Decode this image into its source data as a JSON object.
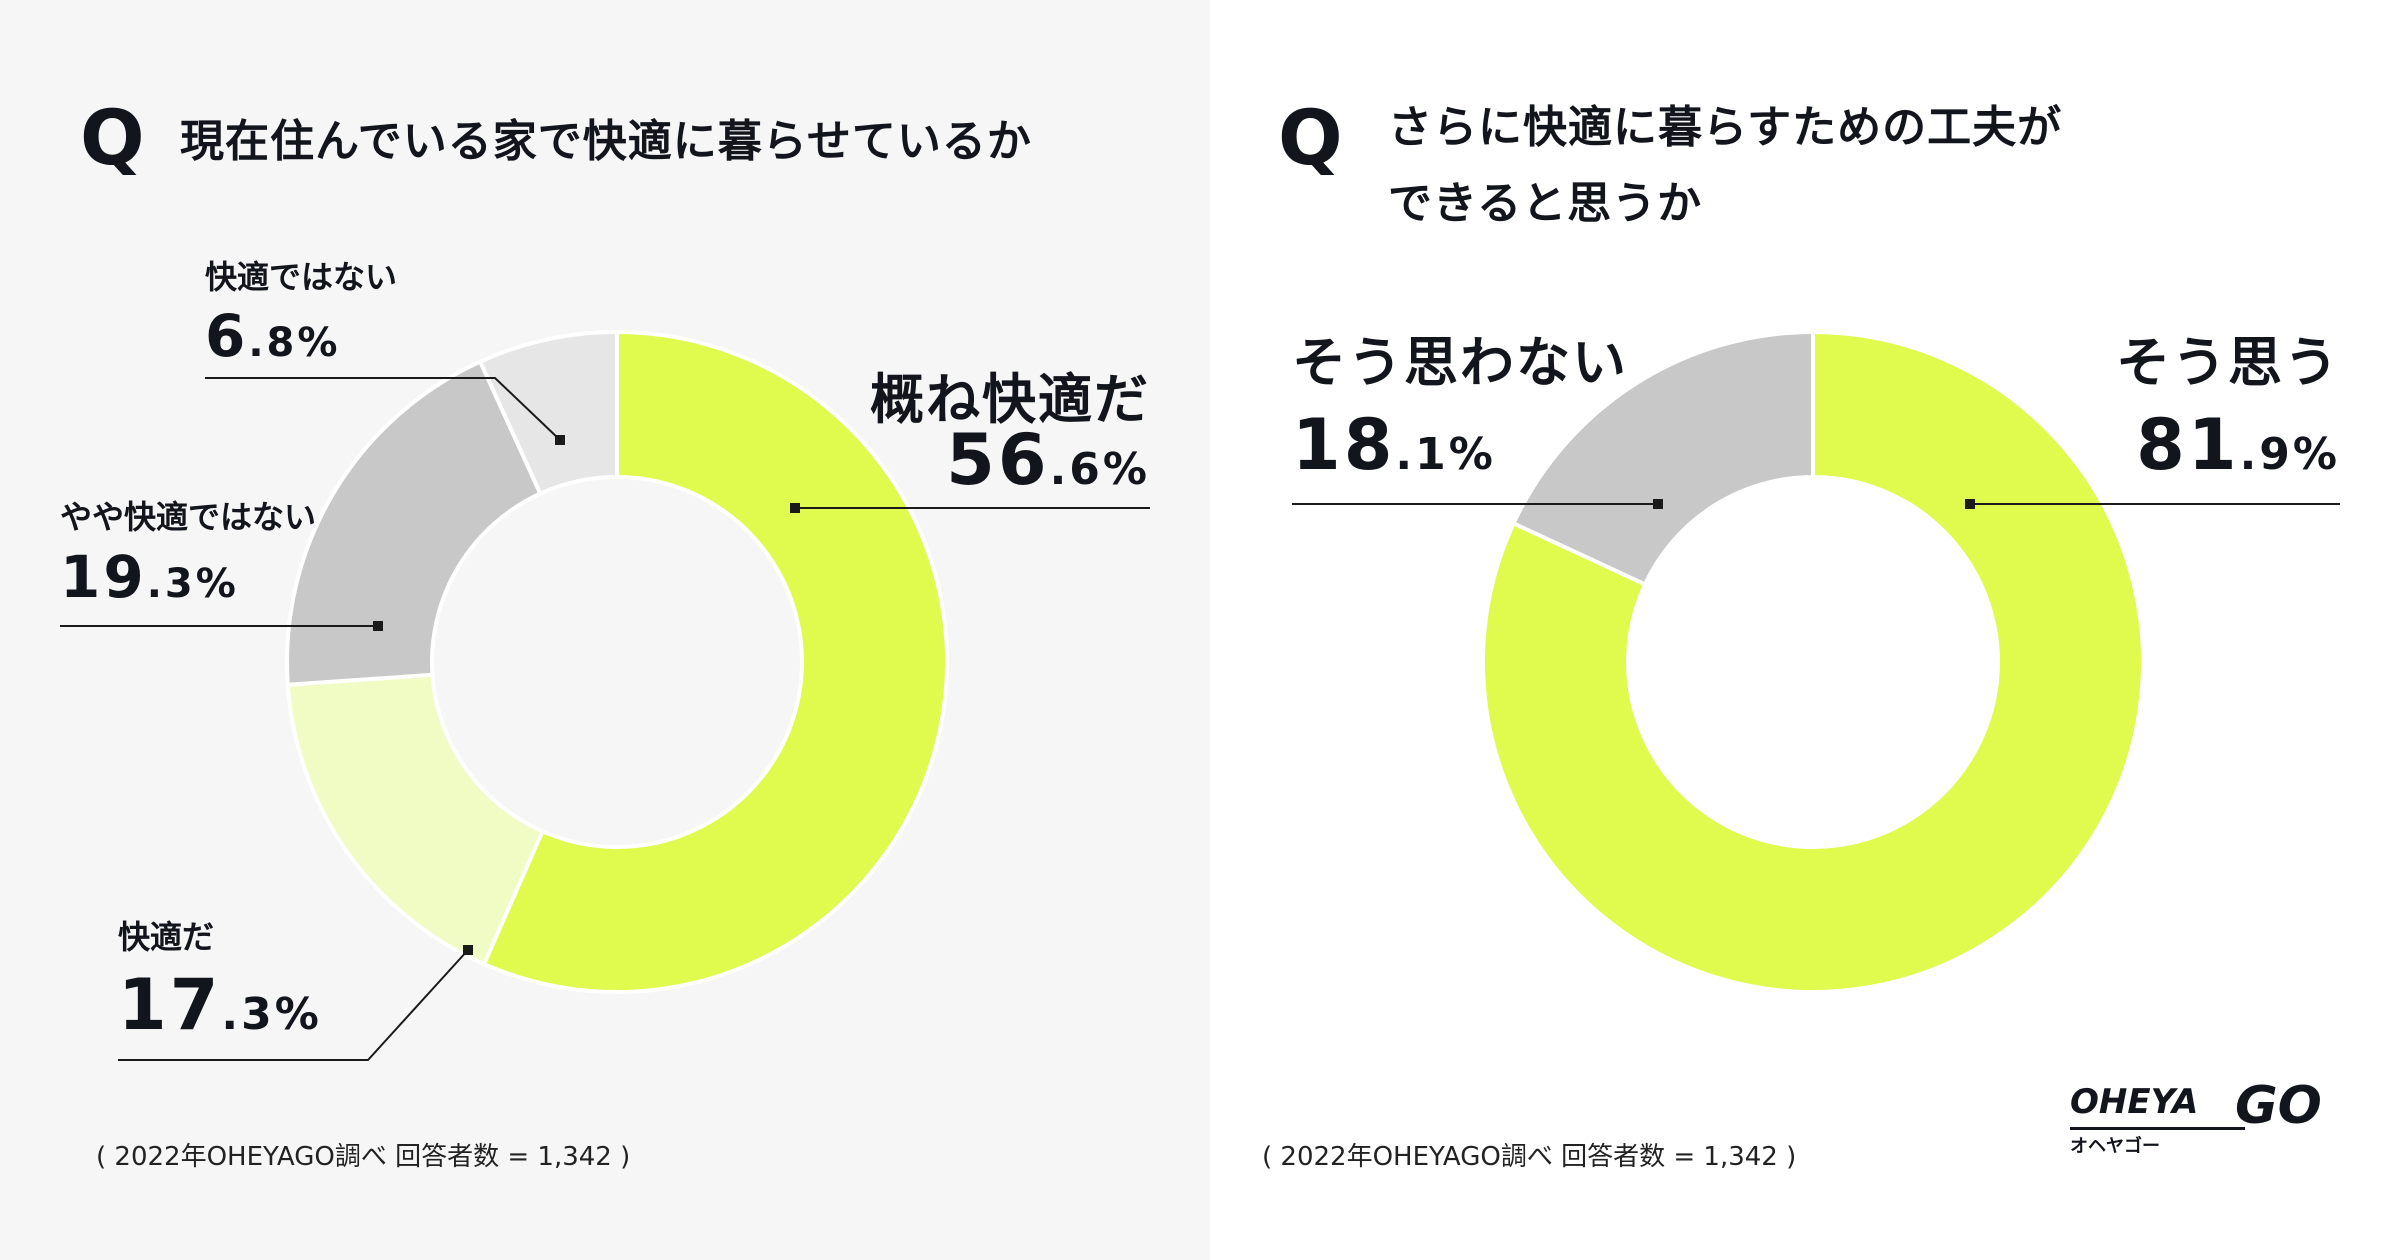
{
  "left": {
    "q": "Q",
    "question": "現在住んでいる家で快適に暮らせているか",
    "source": "( 2022年OHEYAGO調べ 回答者数 = 1,342 )"
  },
  "right": {
    "q": "Q",
    "question_line1": "さらに快適に暮らすための工夫が",
    "question_line2": "できると思うか",
    "source": "( 2022年OHEYAGO調べ 回答者数 = 1,342 )"
  },
  "logo": {
    "wordmark": "OHEYA",
    "go": "GO",
    "kana": "オヘヤゴー"
  },
  "colors": {
    "lime": "#e1fa4e",
    "pale_lime": "#f1fbc4",
    "gray": "#c8c8c8",
    "light_gray": "#e6e6e6"
  },
  "chart_data": [
    {
      "type": "pie",
      "title": "現在住んでいる家で快適に暮らせているか",
      "slices": [
        {
          "label": "概ね快適だ",
          "value": 56.6,
          "int": "56",
          "dec": ".6%",
          "color": "#e1fa4e"
        },
        {
          "label": "快適だ",
          "value": 17.3,
          "int": "17",
          "dec": ".3%",
          "color": "#f1fbc4"
        },
        {
          "label": "やや快適ではない",
          "value": 19.3,
          "int": "19",
          "dec": ".3%",
          "color": "#c8c8c8"
        },
        {
          "label": "快適ではない",
          "value": 6.8,
          "int": "6",
          "dec": ".8%",
          "color": "#e6e6e6"
        }
      ]
    },
    {
      "type": "pie",
      "title": "さらに快適に暮らすための工夫ができると思うか",
      "slices": [
        {
          "label": "そう思う",
          "value": 81.9,
          "int": "81",
          "dec": ".9%",
          "color": "#e1fa4e"
        },
        {
          "label": "そう思わない",
          "value": 18.1,
          "int": "18",
          "dec": ".1%",
          "color": "#c8c8c8"
        }
      ]
    }
  ]
}
